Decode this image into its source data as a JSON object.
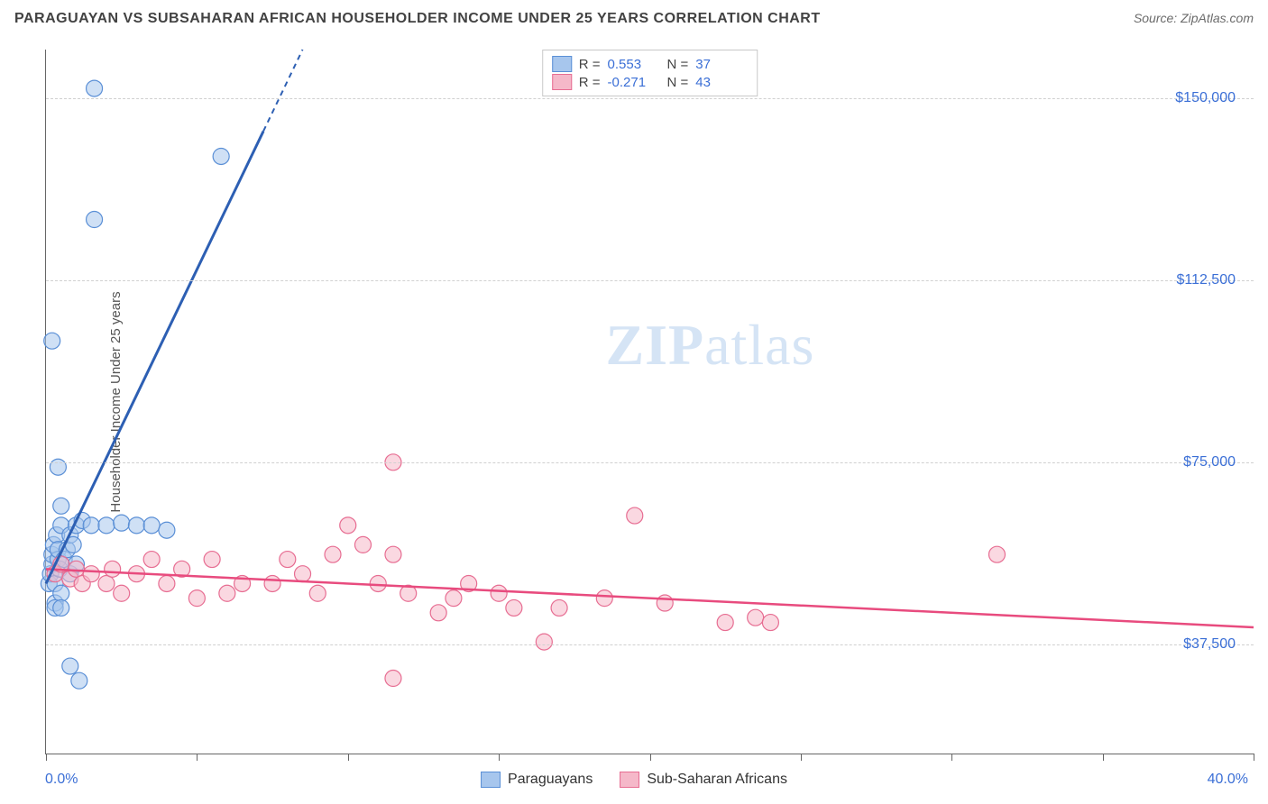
{
  "header": {
    "title": "PARAGUAYAN VS SUBSAHARAN AFRICAN HOUSEHOLDER INCOME UNDER 25 YEARS CORRELATION CHART",
    "source_prefix": "Source: ",
    "source_name": "ZipAtlas.com"
  },
  "chart": {
    "type": "scatter",
    "ylabel": "Householder Income Under 25 years",
    "ylabel_fontsize": 15,
    "xlim": [
      0,
      40
    ],
    "ylim": [
      15000,
      160000
    ],
    "x_axis_min_label": "0.0%",
    "x_axis_max_label": "40.0%",
    "y_gridlines": [
      37500,
      75000,
      112500,
      150000
    ],
    "y_tick_labels": [
      "$37,500",
      "$75,000",
      "$112,500",
      "$150,000"
    ],
    "x_tick_positions": [
      0,
      5,
      10,
      15,
      20,
      25,
      30,
      35,
      40
    ],
    "grid_color": "#d0d0d0",
    "axis_color": "#666666",
    "background_color": "#ffffff",
    "tick_label_color": "#3b6fd6",
    "watermark_text_bold": "ZIP",
    "watermark_text_rest": "atlas",
    "watermark_color": "#d5e4f5",
    "series": {
      "blue": {
        "label": "Paraguayans",
        "fill_color": "#a7c6ed",
        "stroke_color": "#5a8fd6",
        "line_color": "#2d5fb3",
        "marker_radius": 9,
        "fill_opacity": 0.55,
        "R": "0.553",
        "N": "37",
        "trend": {
          "x1": 0,
          "y1": 50000,
          "x2": 8.5,
          "y2": 160000,
          "dashed_from_x": 7.2
        },
        "points": [
          [
            0.1,
            50000
          ],
          [
            0.15,
            52000
          ],
          [
            0.2,
            54000
          ],
          [
            0.2,
            56000
          ],
          [
            0.25,
            58000
          ],
          [
            0.3,
            50000
          ],
          [
            0.3,
            46000
          ],
          [
            0.35,
            60000
          ],
          [
            0.4,
            55000
          ],
          [
            0.4,
            57000
          ],
          [
            0.45,
            53000
          ],
          [
            0.5,
            62000
          ],
          [
            0.5,
            48000
          ],
          [
            0.6,
            55000
          ],
          [
            0.7,
            57000
          ],
          [
            0.8,
            60000
          ],
          [
            0.8,
            52000
          ],
          [
            0.9,
            58000
          ],
          [
            1.0,
            54000
          ],
          [
            1.0,
            62000
          ],
          [
            0.4,
            74000
          ],
          [
            0.2,
            100000
          ],
          [
            0.5,
            66000
          ],
          [
            1.2,
            63000
          ],
          [
            1.5,
            62000
          ],
          [
            2.0,
            62000
          ],
          [
            2.5,
            62500
          ],
          [
            3.0,
            62000
          ],
          [
            3.5,
            62000
          ],
          [
            4.0,
            61000
          ],
          [
            1.6,
            152000
          ],
          [
            5.8,
            138000
          ],
          [
            1.6,
            125000
          ],
          [
            0.8,
            33000
          ],
          [
            1.1,
            30000
          ],
          [
            0.3,
            45000
          ],
          [
            0.5,
            45000
          ]
        ]
      },
      "pink": {
        "label": "Sub-Saharan Africans",
        "fill_color": "#f5b8c9",
        "stroke_color": "#e76d92",
        "line_color": "#e84b7e",
        "marker_radius": 9,
        "fill_opacity": 0.55,
        "R": "-0.271",
        "N": "43",
        "trend": {
          "x1": 0,
          "y1": 53000,
          "x2": 40,
          "y2": 41000
        },
        "points": [
          [
            0.3,
            52000
          ],
          [
            0.5,
            54000
          ],
          [
            0.8,
            51000
          ],
          [
            1.0,
            53000
          ],
          [
            1.2,
            50000
          ],
          [
            1.5,
            52000
          ],
          [
            2.0,
            50000
          ],
          [
            2.2,
            53000
          ],
          [
            2.5,
            48000
          ],
          [
            3.0,
            52000
          ],
          [
            3.5,
            55000
          ],
          [
            4.0,
            50000
          ],
          [
            4.5,
            53000
          ],
          [
            5.0,
            47000
          ],
          [
            5.5,
            55000
          ],
          [
            6.0,
            48000
          ],
          [
            6.5,
            50000
          ],
          [
            7.5,
            50000
          ],
          [
            8.0,
            55000
          ],
          [
            8.5,
            52000
          ],
          [
            9.0,
            48000
          ],
          [
            9.5,
            56000
          ],
          [
            10.0,
            62000
          ],
          [
            10.5,
            58000
          ],
          [
            11.0,
            50000
          ],
          [
            11.5,
            56000
          ],
          [
            12.0,
            48000
          ],
          [
            11.5,
            75000
          ],
          [
            13.0,
            44000
          ],
          [
            13.5,
            47000
          ],
          [
            14.0,
            50000
          ],
          [
            15.0,
            48000
          ],
          [
            15.5,
            45000
          ],
          [
            16.5,
            38000
          ],
          [
            17.0,
            45000
          ],
          [
            18.5,
            47000
          ],
          [
            19.5,
            64000
          ],
          [
            20.5,
            46000
          ],
          [
            22.5,
            42000
          ],
          [
            23.5,
            43000
          ],
          [
            24.0,
            42000
          ],
          [
            31.5,
            56000
          ],
          [
            11.5,
            30500
          ]
        ]
      }
    },
    "legend_top": {
      "border_color": "#c8c8c8",
      "stat_label_R": "R =",
      "stat_label_N": "N =",
      "label_color": "#444444",
      "value_color": "#3b6fd6"
    },
    "legend_bottom": {
      "text_color": "#333333"
    }
  }
}
